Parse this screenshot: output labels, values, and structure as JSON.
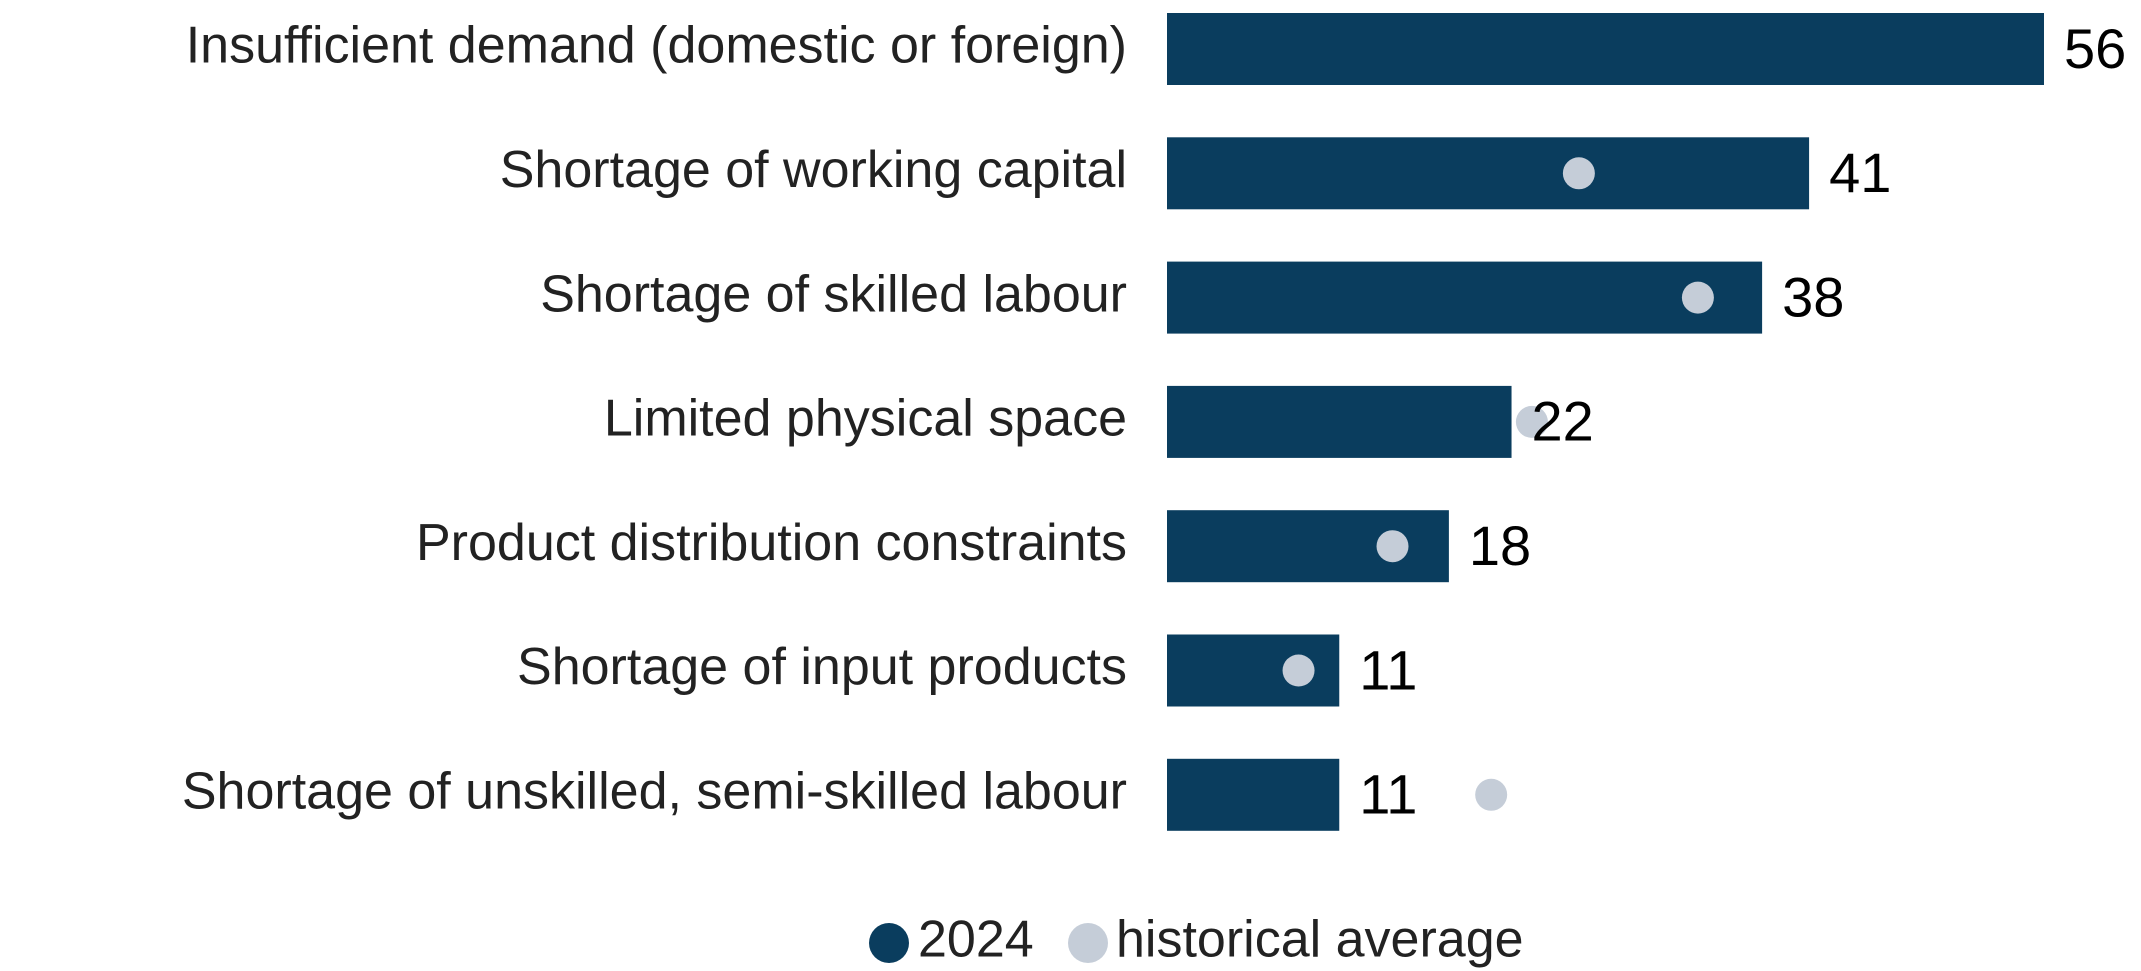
{
  "chart_data": {
    "type": "bar",
    "orientation": "horizontal",
    "categories": [
      "Insufficient demand (domestic or foreign)",
      "Shortage of working capital",
      "Shortage of skilled labour",
      "Limited physical space",
      "Product distribution constraints",
      "Shortage of input products",
      "Shortage of unskilled, semi-skilled labour"
    ],
    "series": [
      {
        "name": "2024",
        "color": "#0a3d5e",
        "values": [
          56,
          41,
          38,
          22,
          18,
          11,
          11
        ]
      },
      {
        "name": "historical average",
        "color": "#c5cdd8",
        "values": [
          null,
          26.3,
          33.9,
          23.3,
          14.4,
          8.4,
          20.7
        ]
      }
    ],
    "legend": "bottom"
  }
}
